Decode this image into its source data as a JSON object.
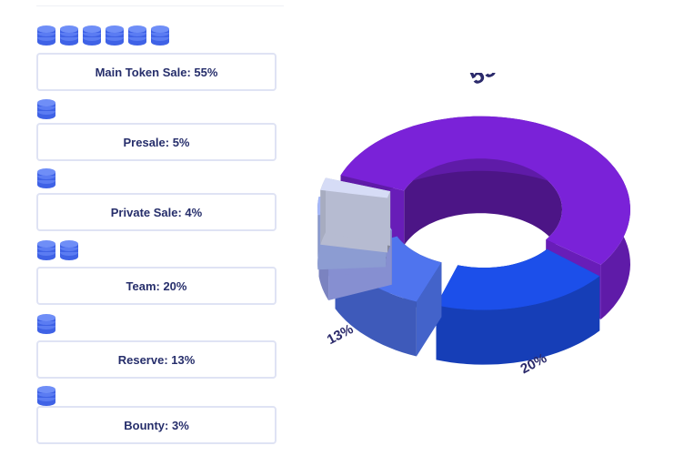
{
  "legend": [
    {
      "label": "Main Token Sale: 55%",
      "coins": 6
    },
    {
      "label": "Presale: 5%",
      "coins": 1
    },
    {
      "label": "Private Sale: 4%",
      "coins": 1
    },
    {
      "label": "Team: 20%",
      "coins": 2
    },
    {
      "label": "Reserve: 13%",
      "coins": 1
    },
    {
      "label": "Bounty: 3%",
      "coins": 1
    }
  ],
  "chart_data": {
    "type": "pie",
    "variant": "3d-donut-exploded",
    "categories": [
      "Main Token Sale",
      "Team",
      "Reserve",
      "Presale",
      "Private Sale",
      "Bounty"
    ],
    "values": [
      55,
      20,
      13,
      5,
      4,
      3
    ],
    "data_labels": [
      "55%",
      "20%",
      "13%",
      "5%",
      "4%",
      "3%"
    ],
    "colors": [
      "#7a22d8",
      "#1c4fea",
      "#4f74ee",
      "#9ea8f6",
      "#a5b7f7",
      "#d6dcf6"
    ],
    "title": "",
    "legend": "left"
  }
}
